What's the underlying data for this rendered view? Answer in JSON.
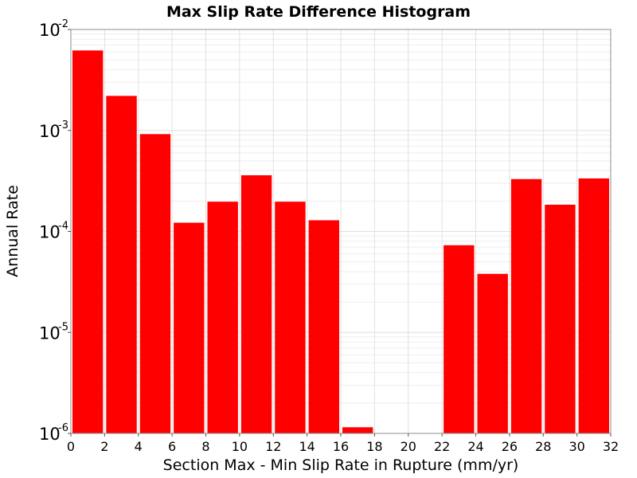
{
  "chart_data": {
    "type": "bar",
    "title": "Max Slip Rate Difference Histogram",
    "xlabel": "Section Max - Min Slip Rate in Rupture (mm/yr)",
    "ylabel": "Annual Rate",
    "xlim": [
      0,
      32
    ],
    "ylim": [
      1e-06,
      0.01
    ],
    "yscale": "log",
    "bar_color": "#ff0000",
    "bin_width": 2,
    "x_ticks": [
      "0",
      "2",
      "4",
      "6",
      "8",
      "10",
      "12",
      "14",
      "16",
      "18",
      "20",
      "22",
      "24",
      "26",
      "28",
      "30",
      "32"
    ],
    "y_ticks": [
      {
        "base": "10",
        "exp": "-6",
        "value": 1e-06
      },
      {
        "base": "10",
        "exp": "-5",
        "value": 1e-05
      },
      {
        "base": "10",
        "exp": "-4",
        "value": 0.0001
      },
      {
        "base": "10",
        "exp": "-3",
        "value": 0.001
      },
      {
        "base": "10",
        "exp": "-2",
        "value": 0.01
      }
    ],
    "bins": [
      {
        "x": 1,
        "value": 0.0062
      },
      {
        "x": 3,
        "value": 0.0022
      },
      {
        "x": 5,
        "value": 0.00092
      },
      {
        "x": 7,
        "value": 0.000122
      },
      {
        "x": 9,
        "value": 0.000197
      },
      {
        "x": 11,
        "value": 0.00036
      },
      {
        "x": 13,
        "value": 0.000197
      },
      {
        "x": 15,
        "value": 0.000129
      },
      {
        "x": 17,
        "value": 1.15e-06
      },
      {
        "x": 19,
        "value": null
      },
      {
        "x": 21,
        "value": null
      },
      {
        "x": 23,
        "value": 7.3e-05
      },
      {
        "x": 25,
        "value": 3.8e-05
      },
      {
        "x": 27,
        "value": 0.00033
      },
      {
        "x": 29,
        "value": 0.000184
      },
      {
        "x": 31,
        "value": 0.000335
      }
    ],
    "grid": true,
    "legend": "none"
  }
}
